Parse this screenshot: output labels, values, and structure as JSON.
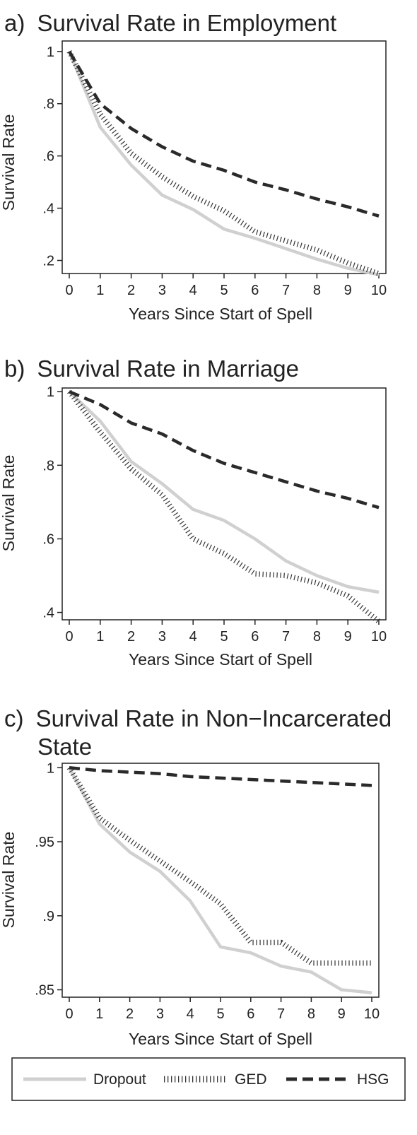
{
  "chart_data": [
    {
      "type": "line",
      "panel": "a)",
      "title": "Survival Rate in Employment",
      "xlabel": "Years Since Start of Spell",
      "ylabel": "Survival Rate",
      "xlim": [
        0,
        10
      ],
      "ylim": [
        0.15,
        1.04
      ],
      "x": [
        0,
        1,
        2,
        3,
        4,
        5,
        6,
        7,
        8,
        9,
        10
      ],
      "xticks": [
        0,
        1,
        2,
        3,
        4,
        5,
        6,
        7,
        8,
        9,
        10
      ],
      "yticks": [
        1,
        0.8,
        0.6,
        0.4,
        0.2
      ],
      "ytick_labels": [
        "1",
        ".8",
        ".6",
        ".4",
        ".2"
      ],
      "grid": false,
      "series": [
        {
          "name": "Dropout",
          "values": [
            1.0,
            0.71,
            0.565,
            0.45,
            0.395,
            0.32,
            0.285,
            0.245,
            0.205,
            0.17,
            0.145
          ]
        },
        {
          "name": "GED",
          "values": [
            1.0,
            0.76,
            0.61,
            0.52,
            0.445,
            0.39,
            0.31,
            0.275,
            0.24,
            0.19,
            0.15
          ]
        },
        {
          "name": "HSG",
          "values": [
            1.0,
            0.8,
            0.705,
            0.635,
            0.58,
            0.545,
            0.5,
            0.47,
            0.435,
            0.405,
            0.37
          ]
        }
      ]
    },
    {
      "type": "line",
      "panel": "b)",
      "title": "Survival Rate in Marriage",
      "xlabel": "Years Since Start of Spell",
      "ylabel": "Survival Rate",
      "xlim": [
        0,
        10
      ],
      "ylim": [
        0.38,
        1.01
      ],
      "x": [
        0,
        1,
        2,
        3,
        4,
        5,
        6,
        7,
        8,
        9,
        10
      ],
      "xticks": [
        0,
        1,
        2,
        3,
        4,
        5,
        6,
        7,
        8,
        9,
        10
      ],
      "yticks": [
        1,
        0.8,
        0.6,
        0.4
      ],
      "ytick_labels": [
        "1",
        ".8",
        ".6",
        ".4"
      ],
      "grid": false,
      "series": [
        {
          "name": "Dropout",
          "values": [
            1.0,
            0.92,
            0.81,
            0.75,
            0.68,
            0.65,
            0.6,
            0.54,
            0.5,
            0.47,
            0.455
          ]
        },
        {
          "name": "GED",
          "values": [
            1.0,
            0.89,
            0.79,
            0.72,
            0.6,
            0.56,
            0.505,
            0.5,
            0.48,
            0.445,
            0.375
          ]
        },
        {
          "name": "HSG",
          "values": [
            1.0,
            0.965,
            0.915,
            0.885,
            0.84,
            0.805,
            0.78,
            0.755,
            0.73,
            0.71,
            0.685
          ]
        }
      ]
    },
    {
      "type": "line",
      "panel": "c)",
      "title_lines": [
        "Survival Rate in Non−Incarcerated",
        "State"
      ],
      "xlabel": "Years Since Start of Spell",
      "ylabel": "Survival Rate",
      "xlim": [
        0,
        10
      ],
      "ylim": [
        0.845,
        1.003
      ],
      "x": [
        0,
        1,
        2,
        3,
        4,
        5,
        6,
        7,
        8,
        9,
        10
      ],
      "xticks": [
        0,
        1,
        2,
        3,
        4,
        5,
        6,
        7,
        8,
        9,
        10
      ],
      "yticks": [
        1,
        0.95,
        0.9,
        0.85
      ],
      "ytick_labels": [
        "1",
        ".95",
        ".9",
        ".85"
      ],
      "grid": false,
      "series": [
        {
          "name": "Dropout",
          "values": [
            1.0,
            0.962,
            0.943,
            0.93,
            0.91,
            0.879,
            0.875,
            0.866,
            0.862,
            0.85,
            0.848
          ]
        },
        {
          "name": "GED",
          "values": [
            1.0,
            0.966,
            0.951,
            0.937,
            0.923,
            0.908,
            0.882,
            0.882,
            0.868,
            0.868,
            0.868
          ]
        },
        {
          "name": "HSG",
          "values": [
            1.0,
            0.998,
            0.997,
            0.996,
            0.994,
            0.993,
            0.992,
            0.991,
            0.99,
            0.989,
            0.988
          ]
        }
      ]
    }
  ],
  "legend": {
    "placement": "bottom",
    "items": [
      {
        "label": "Dropout",
        "color": "#d0d0d0",
        "style": "solid"
      },
      {
        "label": "GED",
        "color": "#333333",
        "style": "dotted"
      },
      {
        "label": "HSG",
        "color": "#2a2a2a",
        "style": "dashed"
      }
    ]
  },
  "colors": {
    "dropout": "#d0d0d0",
    "ged": "#333333",
    "hsg": "#2a2a2a",
    "axis": "#222222"
  }
}
